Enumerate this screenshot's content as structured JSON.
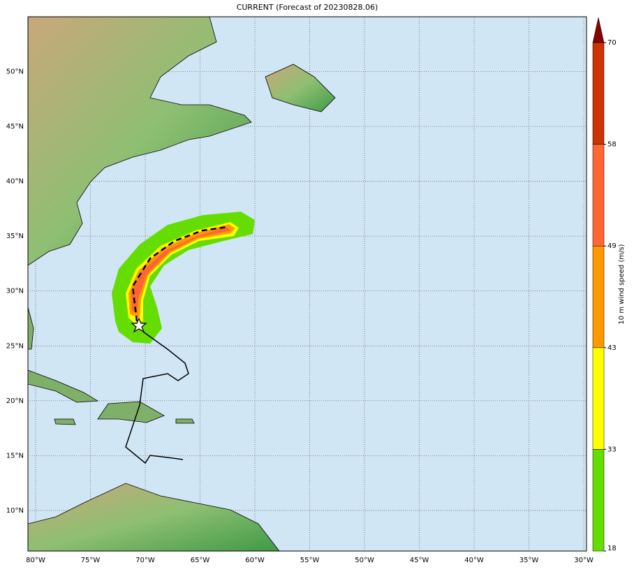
{
  "map": {
    "title": "CURRENT (Forecast of 20230828.06)",
    "xlim": [
      -80.7,
      -29.75
    ],
    "ylim": [
      6.3,
      55.0
    ],
    "lon_ticks": [
      {
        "value": -80,
        "label": "80°W"
      },
      {
        "value": -75,
        "label": "75°W"
      },
      {
        "value": -70,
        "label": "70°W"
      },
      {
        "value": -65,
        "label": "65°W"
      },
      {
        "value": -60,
        "label": "60°W"
      },
      {
        "value": -55,
        "label": "55°W"
      },
      {
        "value": -50,
        "label": "50°W"
      },
      {
        "value": -45,
        "label": "45°W"
      },
      {
        "value": -40,
        "label": "40°W"
      },
      {
        "value": -35,
        "label": "35°W"
      },
      {
        "value": -30,
        "label": "30°W"
      }
    ],
    "lat_ticks": [
      {
        "value": 10,
        "label": "10°N"
      },
      {
        "value": 15,
        "label": "15°N"
      },
      {
        "value": 20,
        "label": "20°N"
      },
      {
        "value": 25,
        "label": "25°N"
      },
      {
        "value": 30,
        "label": "30°N"
      },
      {
        "value": 35,
        "label": "35°N"
      },
      {
        "value": 40,
        "label": "40°N"
      },
      {
        "value": 45,
        "label": "45°N"
      },
      {
        "value": 50,
        "label": "50°N"
      }
    ],
    "grid": true
  },
  "colorbar": {
    "label": "10 m wind speed (m/s)",
    "levels": [
      18,
      33,
      43,
      49,
      58,
      70
    ],
    "colors": [
      "#66dd00",
      "#ffff00",
      "#ff9900",
      "#ff6633",
      "#cc3300"
    ],
    "extend_color": "#880000"
  }
}
